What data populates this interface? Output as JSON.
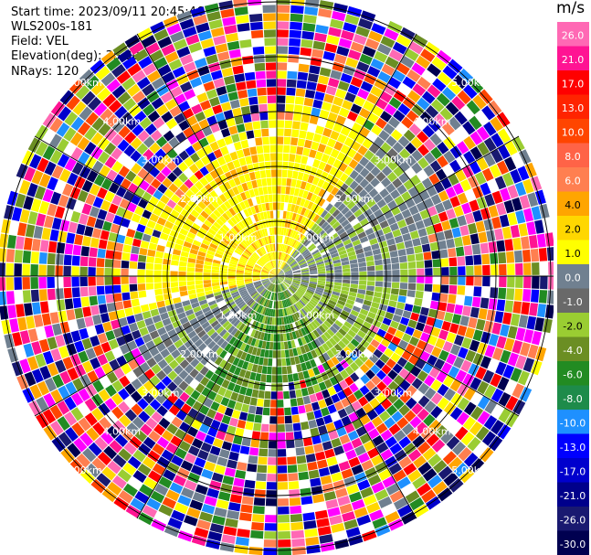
{
  "header": {
    "start_time": "Start time: 2023/09/11 20:45:46",
    "instrument": "WLS200s-181",
    "field": "Field: VEL",
    "elevation": "Elevation(deg): 35.30",
    "nrays": "NRays: 120"
  },
  "range_rings": {
    "labels": [
      "1.00km",
      "2.00km",
      "3.00km",
      "4.00km",
      "5.00km"
    ]
  },
  "colorbar": {
    "unit": "m/s",
    "ticks": [
      "26.0",
      "21.0",
      "17.0",
      "13.0",
      "10.0",
      "8.0",
      "6.0",
      "4.0",
      "2.0",
      "1.0",
      "0.0",
      "-1.0",
      "-2.0",
      "-4.0",
      "-6.0",
      "-8.0",
      "-10.0",
      "-13.0",
      "-17.0",
      "-21.0",
      "-26.0",
      "-30.0"
    ],
    "colors": [
      "#ff69b4",
      "#ff1493",
      "#ff0000",
      "#ff2400",
      "#ff4500",
      "#ff6347",
      "#ff7f50",
      "#ffa500",
      "#ffd700",
      "#ffff00",
      "#708090",
      "#696969",
      "#9acd32",
      "#6b8e23",
      "#228b22",
      "#1e8b4a",
      "#1e90ff",
      "#0000ff",
      "#0000cd",
      "#00008b",
      "#191970",
      "#000050"
    ]
  }
}
